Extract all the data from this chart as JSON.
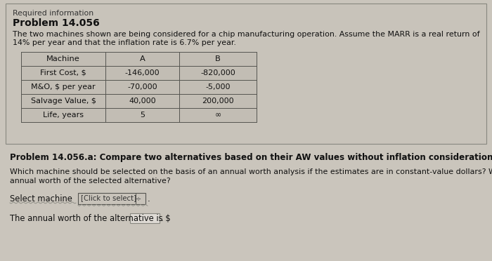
{
  "required_info_label": "Required information",
  "problem_number": "Problem 14.056",
  "description_line1": "The two machines shown are being considered for a chip manufacturing operation. Assume the MARR is a real return of",
  "description_line2": "14% per year and that the inflation rate is 6.7% per year.",
  "table_headers": [
    "Machine",
    "A",
    "B"
  ],
  "table_rows": [
    [
      "First Cost, $",
      "-146,000",
      "-820,000"
    ],
    [
      "M&O, $ per year",
      "-70,000",
      "-5,000"
    ],
    [
      "Salvage Value, $",
      "40,000",
      "200,000"
    ],
    [
      "Life, years",
      "5",
      "∞"
    ]
  ],
  "problem_part_title": "Problem 14.056.a: Compare two alternatives based on their AW values without inflation consideration",
  "question_line1": "Which machine should be selected on the basis of an annual worth analysis if the estimates are in constant-value dollars? What is the",
  "question_line2": "annual worth of the selected alternative?",
  "select_label": "Select machine",
  "select_placeholder": "[Click to select]",
  "select_arrow": "÷",
  "annual_worth_label": "The annual worth of the alternative is $",
  "bg_color": "#cac5bc",
  "outer_box_facecolor": "#c8c3ba",
  "outer_box_edgecolor": "#888880",
  "table_facecolor": "#c2bdb4",
  "table_edgecolor": "#555550",
  "dropdown_facecolor": "#c8c3ba",
  "dropdown_edgecolor": "#555550",
  "input_facecolor": "#dedad4",
  "input_edgecolor": "#888880",
  "wave_color": "#888880",
  "text_color": "#111111",
  "title_bold_color": "#111111"
}
